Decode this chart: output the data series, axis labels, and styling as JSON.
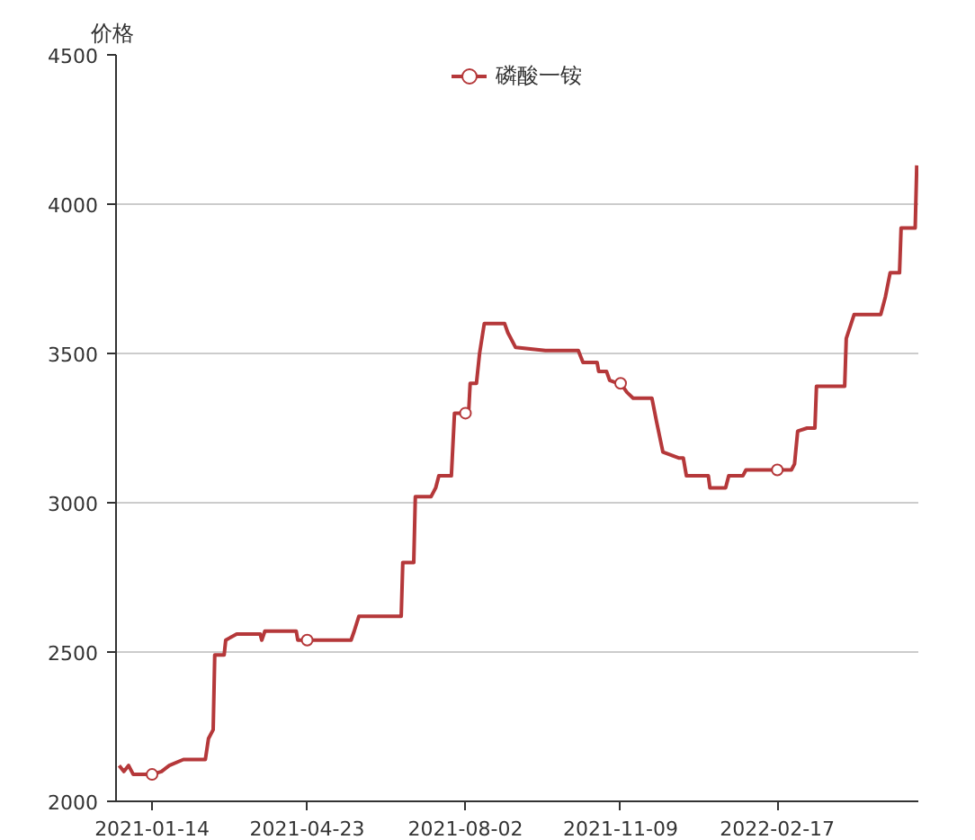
{
  "chart_data": {
    "type": "line",
    "ylabel": "价格",
    "legend": "top",
    "grid": "y",
    "line_style": "solid",
    "xlim": [
      "2020-12-22",
      "2022-05-18"
    ],
    "xticks": [
      "2021-01-14",
      "2021-04-23",
      "2021-08-02",
      "2021-11-09",
      "2022-02-17"
    ],
    "ylim": [
      2000,
      4500
    ],
    "yticks": [
      2000,
      2500,
      3000,
      3500,
      4000,
      4500
    ],
    "x": [
      "2020-12-24",
      "2020-12-27",
      "2020-12-30",
      "2021-01-02",
      "2021-01-14",
      "2021-01-20",
      "2021-01-25",
      "2021-02-03",
      "2021-02-17",
      "2021-02-19",
      "2021-02-22",
      "2021-02-23",
      "2021-03-01",
      "2021-03-02",
      "2021-03-09",
      "2021-03-24",
      "2021-03-25",
      "2021-03-27",
      "2021-04-16",
      "2021-04-17",
      "2021-04-23",
      "2021-05-21",
      "2021-05-23",
      "2021-05-26",
      "2021-06-22",
      "2021-06-23",
      "2021-06-30",
      "2021-07-01",
      "2021-07-11",
      "2021-07-14",
      "2021-07-16",
      "2021-07-24",
      "2021-07-26",
      "2021-08-02",
      "2021-08-04",
      "2021-08-05",
      "2021-08-09",
      "2021-08-11",
      "2021-08-14",
      "2021-08-27",
      "2021-08-29",
      "2021-09-03",
      "2021-09-22",
      "2021-10-13",
      "2021-10-16",
      "2021-10-25",
      "2021-10-26",
      "2021-10-31",
      "2021-11-02",
      "2021-11-07",
      "2021-11-09",
      "2021-11-13",
      "2021-11-17",
      "2021-11-29",
      "2021-12-02",
      "2021-12-06",
      "2021-12-11",
      "2021-12-16",
      "2021-12-19",
      "2021-12-21",
      "2022-01-04",
      "2022-01-05",
      "2022-01-15",
      "2022-01-17",
      "2022-01-26",
      "2022-01-28",
      "2022-02-17",
      "2022-02-26",
      "2022-02-28",
      "2022-03-02",
      "2022-03-08",
      "2022-03-13",
      "2022-03-14",
      "2022-04-01",
      "2022-04-02",
      "2022-04-07",
      "2022-04-24",
      "2022-04-27",
      "2022-04-30",
      "2022-05-06",
      "2022-05-07",
      "2022-05-16",
      "2022-05-17"
    ],
    "series": [
      {
        "name": "磷酸一铵",
        "color": "#b5383a",
        "values": [
          2120,
          2100,
          2120,
          2090,
          2090,
          2100,
          2120,
          2140,
          2140,
          2210,
          2240,
          2490,
          2490,
          2540,
          2560,
          2560,
          2540,
          2570,
          2570,
          2540,
          2540,
          2540,
          2570,
          2620,
          2620,
          2800,
          2800,
          3020,
          3020,
          3050,
          3090,
          3090,
          3300,
          3300,
          3300,
          3400,
          3400,
          3500,
          3600,
          3600,
          3570,
          3520,
          3510,
          3510,
          3470,
          3470,
          3440,
          3440,
          3410,
          3400,
          3400,
          3370,
          3350,
          3350,
          3270,
          3170,
          3160,
          3150,
          3150,
          3090,
          3090,
          3050,
          3050,
          3090,
          3090,
          3110,
          3110,
          3110,
          3130,
          3240,
          3250,
          3250,
          3390,
          3390,
          3550,
          3630,
          3630,
          3690,
          3770,
          3770,
          3920,
          3920,
          4130
        ]
      },
      {
        "type": "scatter",
        "marker": "circle",
        "color": "#b5383a",
        "x": [
          "2021-01-14",
          "2021-04-23",
          "2021-08-02",
          "2021-11-09",
          "2022-02-17"
        ],
        "values": [
          2090,
          2540,
          3300,
          3400,
          3110
        ]
      }
    ]
  }
}
